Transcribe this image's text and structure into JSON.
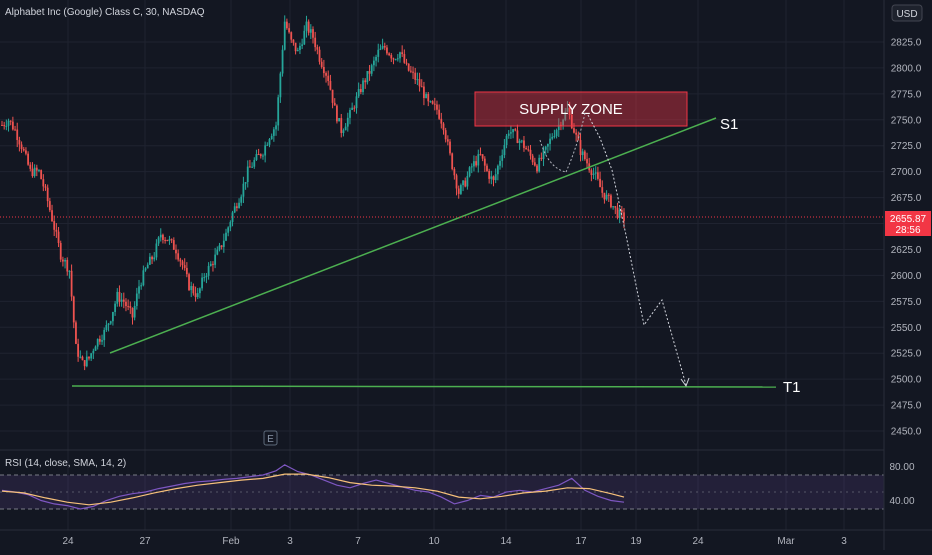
{
  "header": {
    "symbol_title": "Alphabet Inc (Google) Class C, 30, NASDAQ",
    "currency": "USD"
  },
  "price_label": {
    "value": "2655.87",
    "countdown": "28:56",
    "color": "#f23645"
  },
  "earnings_marker": "E",
  "rsi": {
    "title": "RSI (14, close, SMA, 14, 2)",
    "levels": [
      "80.00",
      "40.00"
    ],
    "upper_band": 70,
    "lower_band": 30,
    "mid_band": 50,
    "rsi_color": "#7e57c2",
    "sma_color": "#f7c17a"
  },
  "annotations": {
    "supply_zone": "SUPPLY ZONE",
    "s1": "S1",
    "t1": "T1"
  },
  "x_axis_labels": [
    "24",
    "27",
    "Feb",
    "3",
    "7",
    "10",
    "14",
    "17",
    "19",
    "24",
    "Mar",
    "3"
  ],
  "colors": {
    "up": "#26a69a",
    "down": "#ef5350",
    "trend": "#4caf50",
    "zone_fill": "#f2364566",
    "zone_border": "#f23645"
  },
  "chart_data": {
    "type": "candlestick",
    "title": "Alphabet Inc (Google) Class C, 30, NASDAQ",
    "y_ticks": [
      2825,
      2800,
      2775,
      2750,
      2725,
      2700,
      2675,
      2650,
      2625,
      2600,
      2575,
      2550,
      2525,
      2500,
      2475,
      2450
    ],
    "ylim": [
      2438,
      2860
    ],
    "last_price": 2655.87,
    "close_path": [
      [
        0,
        2745
      ],
      [
        3,
        2750
      ],
      [
        6,
        2740
      ],
      [
        9,
        2725
      ],
      [
        13,
        2700
      ],
      [
        17,
        2700
      ],
      [
        20,
        2680
      ],
      [
        23,
        2655
      ],
      [
        27,
        2620
      ],
      [
        31,
        2605
      ],
      [
        34,
        2530
      ],
      [
        37,
        2515
      ],
      [
        40,
        2520
      ],
      [
        43,
        2535
      ],
      [
        47,
        2545
      ],
      [
        50,
        2560
      ],
      [
        53,
        2580
      ],
      [
        56,
        2575
      ],
      [
        60,
        2560
      ],
      [
        63,
        2590
      ],
      [
        67,
        2610
      ],
      [
        70,
        2620
      ],
      [
        73,
        2640
      ],
      [
        76,
        2635
      ],
      [
        80,
        2625
      ],
      [
        83,
        2610
      ],
      [
        86,
        2590
      ],
      [
        90,
        2580
      ],
      [
        93,
        2600
      ],
      [
        96,
        2610
      ],
      [
        100,
        2625
      ],
      [
        103,
        2640
      ],
      [
        106,
        2660
      ],
      [
        110,
        2680
      ],
      [
        113,
        2700
      ],
      [
        116,
        2710
      ],
      [
        120,
        2720
      ],
      [
        123,
        2735
      ],
      [
        126,
        2745
      ],
      [
        130,
        2845
      ],
      [
        133,
        2825
      ],
      [
        136,
        2815
      ],
      [
        140,
        2840
      ],
      [
        143,
        2830
      ],
      [
        146,
        2810
      ],
      [
        150,
        2790
      ],
      [
        153,
        2760
      ],
      [
        156,
        2740
      ],
      [
        160,
        2755
      ],
      [
        163,
        2770
      ],
      [
        166,
        2785
      ],
      [
        170,
        2800
      ],
      [
        173,
        2815
      ],
      [
        176,
        2820
      ],
      [
        180,
        2810
      ],
      [
        183,
        2815
      ],
      [
        186,
        2800
      ],
      [
        190,
        2790
      ],
      [
        193,
        2780
      ],
      [
        196,
        2765
      ],
      [
        200,
        2760
      ],
      [
        203,
        2745
      ],
      [
        206,
        2715
      ],
      [
        210,
        2680
      ],
      [
        213,
        2690
      ],
      [
        216,
        2705
      ],
      [
        220,
        2715
      ],
      [
        223,
        2700
      ],
      [
        226,
        2690
      ],
      [
        230,
        2720
      ],
      [
        233,
        2740
      ],
      [
        236,
        2735
      ],
      [
        240,
        2725
      ],
      [
        243,
        2715
      ],
      [
        246,
        2705
      ],
      [
        250,
        2720
      ],
      [
        253,
        2735
      ],
      [
        256,
        2745
      ],
      [
        260,
        2760
      ],
      [
        263,
        2740
      ],
      [
        266,
        2720
      ],
      [
        270,
        2705
      ],
      [
        273,
        2695
      ],
      [
        276,
        2680
      ],
      [
        280,
        2670
      ],
      [
        283,
        2660
      ],
      [
        286,
        2655
      ]
    ],
    "indicator_series": [
      {
        "name": "RSI",
        "values": [
          [
            0,
            52
          ],
          [
            6,
            50
          ],
          [
            12,
            47
          ],
          [
            18,
            40
          ],
          [
            24,
            36
          ],
          [
            30,
            34
          ],
          [
            36,
            30
          ],
          [
            42,
            33
          ],
          [
            48,
            40
          ],
          [
            54,
            45
          ],
          [
            60,
            48
          ],
          [
            66,
            50
          ],
          [
            72,
            54
          ],
          [
            78,
            57
          ],
          [
            84,
            60
          ],
          [
            90,
            62
          ],
          [
            96,
            63
          ],
          [
            102,
            65
          ],
          [
            108,
            66
          ],
          [
            114,
            68
          ],
          [
            120,
            70
          ],
          [
            126,
            75
          ],
          [
            130,
            82
          ],
          [
            136,
            74
          ],
          [
            142,
            70
          ],
          [
            148,
            64
          ],
          [
            154,
            58
          ],
          [
            160,
            55
          ],
          [
            166,
            60
          ],
          [
            172,
            64
          ],
          [
            178,
            60
          ],
          [
            184,
            56
          ],
          [
            190,
            52
          ],
          [
            196,
            50
          ],
          [
            202,
            44
          ],
          [
            208,
            36
          ],
          [
            214,
            40
          ],
          [
            220,
            46
          ],
          [
            226,
            44
          ],
          [
            232,
            50
          ],
          [
            238,
            52
          ],
          [
            244,
            50
          ],
          [
            250,
            54
          ],
          [
            256,
            58
          ],
          [
            262,
            66
          ],
          [
            268,
            52
          ],
          [
            274,
            45
          ],
          [
            280,
            40
          ],
          [
            286,
            38
          ]
        ]
      },
      {
        "name": "SMA",
        "values": [
          [
            0,
            51
          ],
          [
            10,
            49
          ],
          [
            20,
            43
          ],
          [
            30,
            38
          ],
          [
            40,
            35
          ],
          [
            50,
            38
          ],
          [
            60,
            43
          ],
          [
            70,
            49
          ],
          [
            80,
            54
          ],
          [
            90,
            58
          ],
          [
            100,
            61
          ],
          [
            110,
            64
          ],
          [
            120,
            66
          ],
          [
            130,
            71
          ],
          [
            140,
            71
          ],
          [
            150,
            67
          ],
          [
            160,
            61
          ],
          [
            170,
            58
          ],
          [
            180,
            57
          ],
          [
            190,
            55
          ],
          [
            200,
            51
          ],
          [
            210,
            44
          ],
          [
            220,
            42
          ],
          [
            230,
            45
          ],
          [
            240,
            49
          ],
          [
            250,
            51
          ],
          [
            260,
            55
          ],
          [
            270,
            54
          ],
          [
            280,
            48
          ],
          [
            286,
            44
          ]
        ]
      }
    ]
  }
}
